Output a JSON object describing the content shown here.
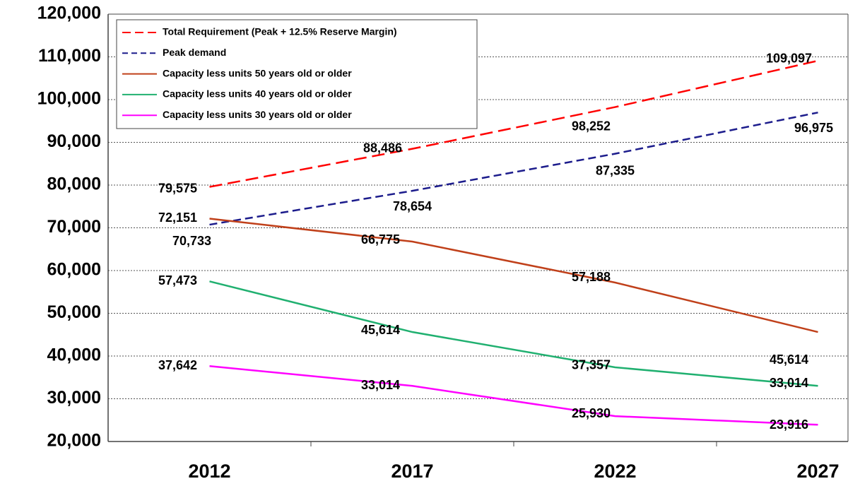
{
  "chart_data": {
    "type": "line",
    "categories": [
      "2012",
      "2017",
      "2022",
      "2027"
    ],
    "ylim": [
      20000,
      120000
    ],
    "yticks": [
      {
        "value": 20000,
        "label": "20,000"
      },
      {
        "value": 30000,
        "label": "30,000"
      },
      {
        "value": 40000,
        "label": "40,000"
      },
      {
        "value": 50000,
        "label": "50,000"
      },
      {
        "value": 60000,
        "label": "60,000"
      },
      {
        "value": 70000,
        "label": "70,000"
      },
      {
        "value": 80000,
        "label": "80,000"
      },
      {
        "value": 90000,
        "label": "90,000"
      },
      {
        "value": 100000,
        "label": "100,000"
      },
      {
        "value": 110000,
        "label": "110,000"
      },
      {
        "value": 120000,
        "label": "120,000"
      }
    ],
    "grid": true,
    "legend": "top-left",
    "series": [
      {
        "name": "Total Requirement (Peak + 12.5%  Reserve Margin)",
        "color": "#ff0000",
        "dashed": true,
        "values": [
          79575,
          88486,
          98252,
          109097
        ],
        "value_labels": [
          "79,575",
          "88,486",
          "98,252",
          "109,097"
        ]
      },
      {
        "name": "Peak demand",
        "color": "#1c1c8c",
        "dashed": true,
        "values": [
          70733,
          78654,
          87335,
          96975
        ],
        "value_labels": [
          "70,733",
          "78,654",
          "87,335",
          "96,975"
        ]
      },
      {
        "name": "Capacity less units 50 years old or older",
        "color": "#c0401a",
        "dashed": false,
        "values": [
          72151,
          66775,
          57188,
          45614
        ],
        "value_labels": [
          "72,151",
          "66,775",
          "57,188",
          "45,614"
        ]
      },
      {
        "name": "Capacity less units 40 years old or older",
        "color": "#20b070",
        "dashed": false,
        "values": [
          57473,
          45614,
          37357,
          33014
        ],
        "value_labels": [
          "57,473",
          "45,614",
          "37,357",
          "33,014"
        ]
      },
      {
        "name": "Capacity less units 30 years old or older",
        "color": "#ff00ff",
        "dashed": false,
        "values": [
          37642,
          33014,
          25930,
          23916
        ],
        "value_labels": [
          "37,642",
          "33,014",
          "25,930",
          "23,916"
        ]
      }
    ]
  }
}
